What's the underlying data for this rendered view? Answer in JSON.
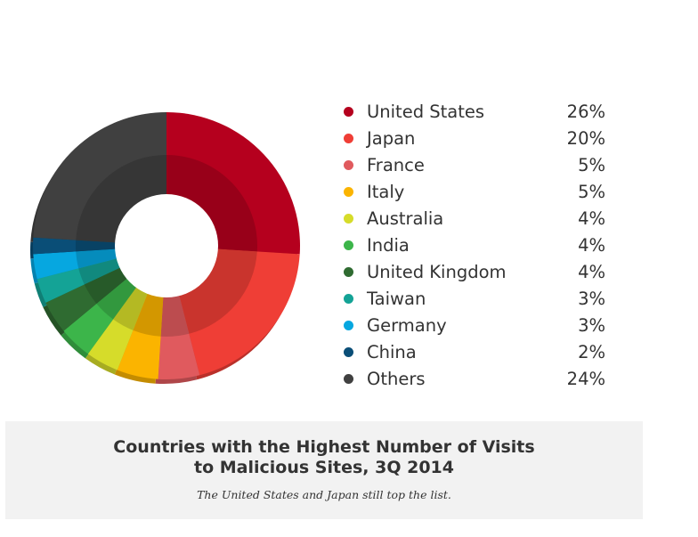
{
  "chart_data": {
    "type": "pie",
    "categories": [
      "United States",
      "Japan",
      "France",
      "Italy",
      "Australia",
      "India",
      "United Kingdom",
      "Taiwan",
      "Germany",
      "China",
      "Others"
    ],
    "values": [
      26,
      20,
      5,
      5,
      4,
      4,
      4,
      3,
      3,
      2,
      24
    ],
    "value_labels": [
      "26%",
      "20%",
      "5%",
      "5%",
      "4%",
      "4%",
      "4%",
      "3%",
      "3%",
      "2%",
      "24%"
    ],
    "colors": [
      "#b5001e",
      "#ef3e36",
      "#e05a5e",
      "#fbb400",
      "#d6dc2a",
      "#3cb54a",
      "#2f6b31",
      "#14a396",
      "#06a7e0",
      "#0a4e77",
      "#404040"
    ],
    "hole": true,
    "legend_position": "right",
    "title": "Countries with the Highest Number of Visits to Malicious Sites, 3Q 2014",
    "subtitle": "The United States and Japan still top the list."
  },
  "caption": {
    "title_line1": "Countries with the Highest Number of Visits",
    "title_line2": "to Malicious Sites, 3Q 2014",
    "subtitle": "The United States and Japan still top the list."
  }
}
